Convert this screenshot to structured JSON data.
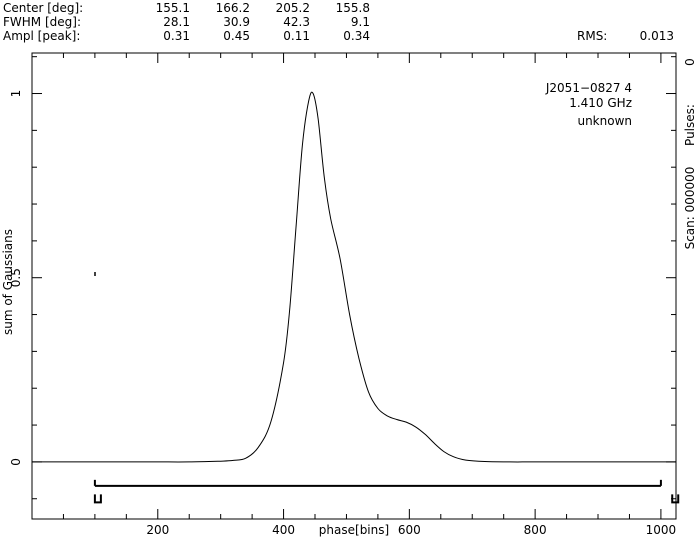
{
  "header": {
    "rows": [
      {
        "label": "Center [deg]:",
        "values": [
          "155.1",
          "166.2",
          "205.2",
          "155.8"
        ]
      },
      {
        "label": "FWHM  [deg]:",
        "values": [
          "28.1",
          "30.9",
          "42.3",
          "9.1"
        ]
      },
      {
        "label": "Ampl  [peak]:",
        "values": [
          "0.31",
          "0.45",
          "0.11",
          "0.34"
        ]
      }
    ],
    "rms_label": "RMS:",
    "rms_value": "0.013"
  },
  "annotation": {
    "line1": "J2051−0827 4",
    "line2": "1.410 GHz",
    "line3": "unknown"
  },
  "right_side": {
    "pulses_label": "Pulses:",
    "pulses_value": "0",
    "scan_label": "Scan: 000000"
  },
  "chart_data": {
    "type": "line",
    "xlabel": "phase[bins]",
    "ylabel": "sum of Gaussians",
    "xlim": [
      0,
      1024
    ],
    "ylim": [
      -0.155,
      1.11
    ],
    "x_ticks": [
      200,
      400,
      600,
      800,
      1000
    ],
    "y_ticks": [
      0,
      0.5,
      1
    ],
    "x_tick_labels": [
      "200",
      "400",
      "600",
      "800",
      "1000"
    ],
    "y_tick_labels": [
      "0",
      "0.5",
      "1"
    ],
    "series": [
      {
        "x": [
          0,
          50,
          100,
          150,
          200,
          250,
          300,
          320,
          340,
          360,
          380,
          400,
          410,
          420,
          430,
          440,
          447,
          455,
          465,
          475,
          490,
          505,
          520,
          535,
          550,
          565,
          580,
          595,
          610,
          625,
          640,
          655,
          670,
          690,
          720,
          760,
          800,
          900,
          1024
        ],
        "y": [
          0,
          0,
          0,
          0,
          0,
          0,
          0.002,
          0.004,
          0.01,
          0.04,
          0.11,
          0.27,
          0.42,
          0.64,
          0.86,
          0.98,
          1.0,
          0.93,
          0.77,
          0.66,
          0.55,
          0.4,
          0.28,
          0.19,
          0.145,
          0.125,
          0.115,
          0.108,
          0.095,
          0.075,
          0.05,
          0.028,
          0.014,
          0.005,
          0.001,
          0,
          0,
          0,
          0
        ]
      }
    ],
    "on_pulse_window": [
      100,
      1000
    ],
    "grid": false
  }
}
